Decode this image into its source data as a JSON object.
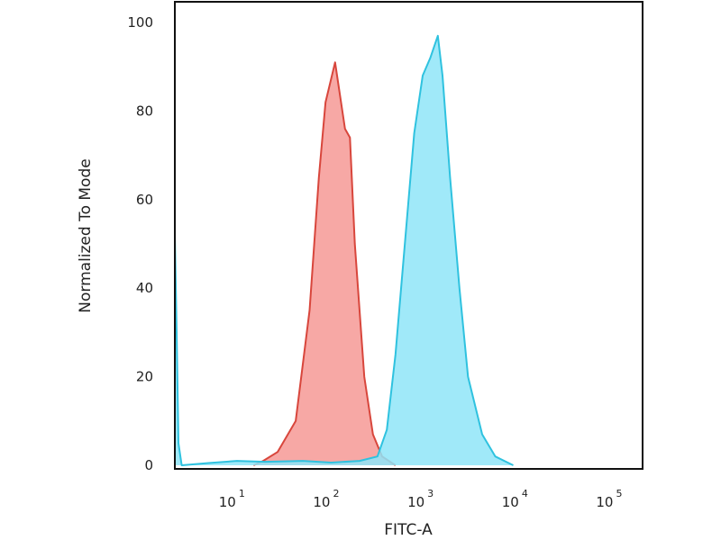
{
  "chart_data": {
    "type": "area",
    "title": "",
    "xlabel": "FITC-A",
    "ylabel": "Normalized To Mode",
    "xscale": "log",
    "xlim": [
      2.2,
      200000
    ],
    "ylim": [
      0,
      104
    ],
    "grid": false,
    "legend": "none",
    "yticks": [
      "0",
      "20",
      "40",
      "60",
      "80",
      "100"
    ],
    "ytick_values": [
      0,
      20,
      40,
      60,
      80,
      100
    ],
    "xticks": [
      {
        "base": "10",
        "exp": "1",
        "value": 10
      },
      {
        "base": "10",
        "exp": "2",
        "value": 100
      },
      {
        "base": "10",
        "exp": "3",
        "value": 1000
      },
      {
        "base": "10",
        "exp": "4",
        "value": 10000
      },
      {
        "base": "10",
        "exp": "5",
        "value": 100000
      }
    ],
    "series": [
      {
        "color_fill": "#f7a3a0",
        "color_line": "#d8463c",
        "x": [
          15,
          19,
          27,
          42,
          59,
          74,
          87,
          110,
          121,
          140,
          158,
          178,
          224,
          277,
          347,
          480
        ],
        "y": [
          0,
          1,
          3,
          10,
          35,
          65,
          82,
          91,
          85,
          76,
          74,
          50,
          20,
          7,
          2,
          0
        ]
      },
      {
        "color_fill": "#8fe5f8",
        "color_line": "#2fc2df",
        "x": [
          2.2,
          2.3,
          2.4,
          2.6,
          5,
          10,
          20,
          50,
          100,
          200,
          309,
          389,
          480,
          603,
          759,
          933,
          1122,
          1349,
          1514,
          1820,
          2291,
          2818,
          3981,
          5495,
          8511
        ],
        "y": [
          52,
          30,
          5,
          0,
          0.5,
          1,
          0.8,
          1,
          0.6,
          1,
          2,
          8,
          25,
          50,
          75,
          88,
          92,
          97,
          88,
          65,
          40,
          20,
          7,
          2,
          0
        ]
      }
    ]
  }
}
